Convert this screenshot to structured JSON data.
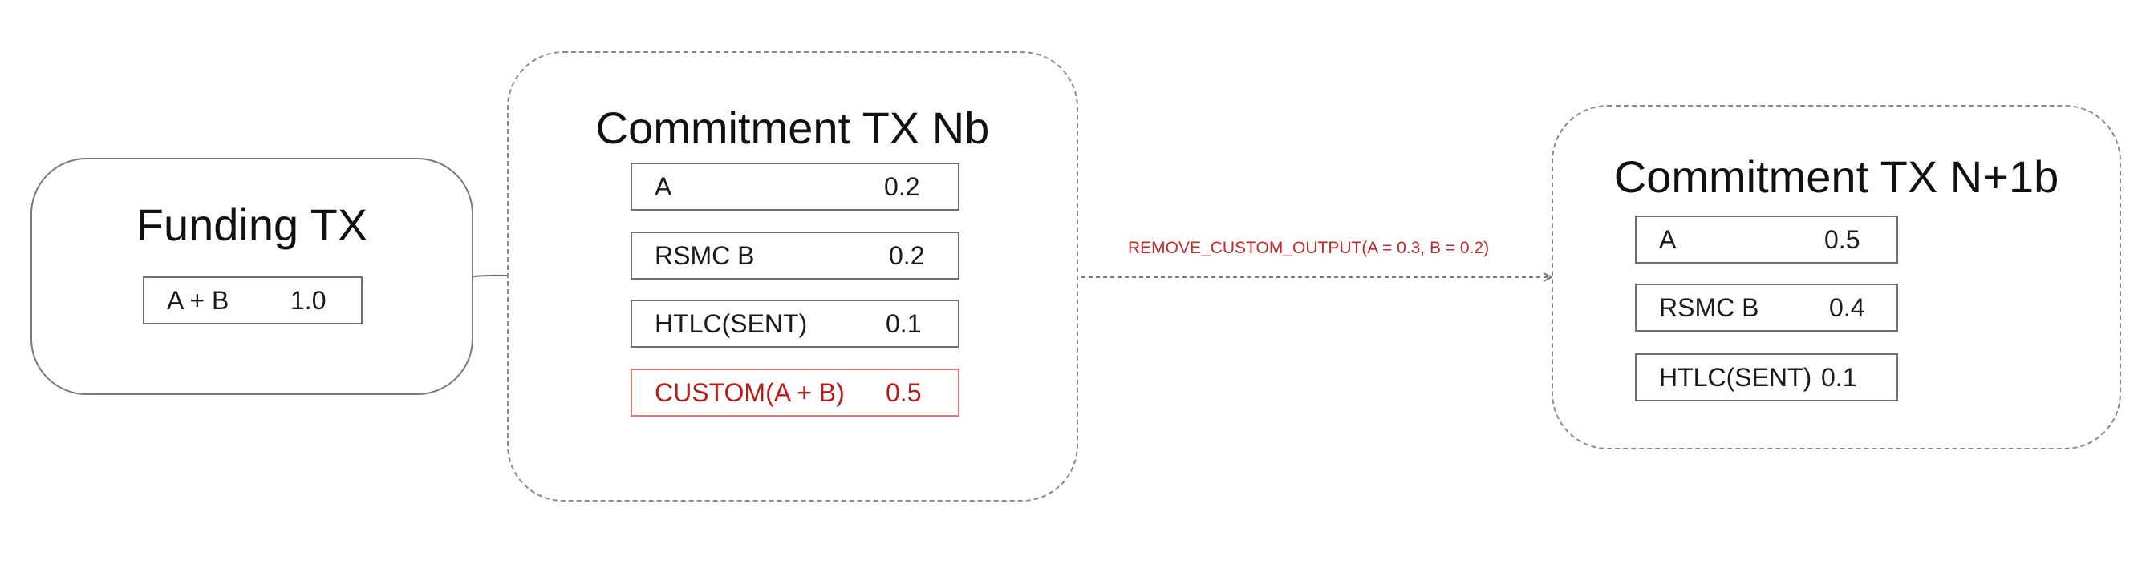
{
  "colors": {
    "border": "#7a7a7a",
    "text": "#1a1a1a",
    "highlight": "#b71c1c",
    "highlight_border": "#d67a7a",
    "operation": "#c62828"
  },
  "funding_tx": {
    "title": "Funding TX",
    "outputs": [
      {
        "label": "A + B",
        "value": "1.0"
      }
    ]
  },
  "commitment_nb": {
    "title": "Commitment TX Nb",
    "outputs": [
      {
        "label": "A",
        "value": "0.2"
      },
      {
        "label": "RSMC B",
        "value": "0.2"
      },
      {
        "label": "HTLC(SENT)",
        "value": "0.1"
      },
      {
        "label": "CUSTOM(A + B)",
        "value": "0.5",
        "highlighted": true
      }
    ]
  },
  "operation": {
    "label": "REMOVE_CUSTOM_OUTPUT(A = 0.3, B = 0.2)"
  },
  "commitment_n1b": {
    "title": "Commitment TX N+1b",
    "outputs": [
      {
        "label": "A",
        "value": "0.5"
      },
      {
        "label": "RSMC B",
        "value": "0.4"
      },
      {
        "label": "HTLC(SENT)",
        "value": "0.1"
      }
    ]
  }
}
